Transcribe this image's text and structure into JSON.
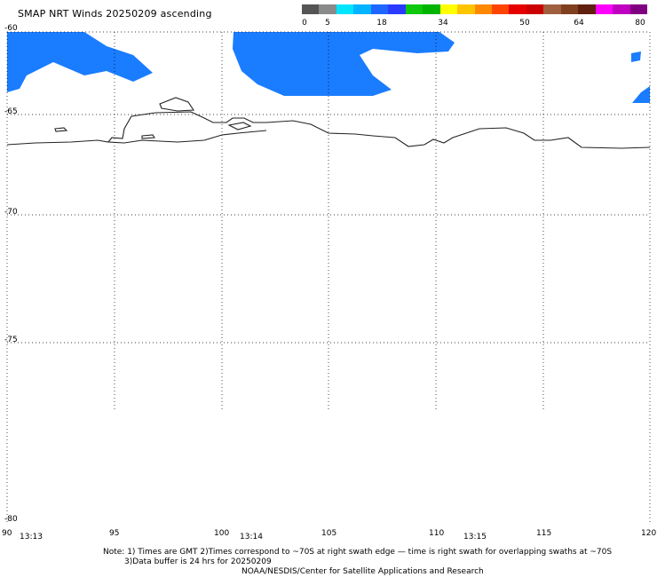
{
  "title": "SMAP NRT Winds 20250209 ascending",
  "colorbar": {
    "labels": [
      "0",
      "5",
      "18",
      "34",
      "50",
      "64",
      "80"
    ],
    "colors": [
      "#555555",
      "#8a8a8a",
      "#00e5ff",
      "#00b4ff",
      "#1e66ff",
      "#2a3bff",
      "#0ec80e",
      "#00b400",
      "#ffff00",
      "#ffc400",
      "#ff8800",
      "#ff4400",
      "#e60000",
      "#cc0000",
      "#a06040",
      "#804020",
      "#602010",
      "#ff00ff",
      "#c000c0",
      "#800080"
    ]
  },
  "map": {
    "lat_labels": [
      "-60",
      "-65",
      "-70",
      "-75",
      "-80"
    ],
    "lon_labels": [
      "90",
      "95",
      "100",
      "105",
      "110",
      "115",
      "120"
    ],
    "time_labels": [
      "13:13",
      "13:14",
      "13:15"
    ],
    "wind_color": "#1a7cff"
  },
  "notes": {
    "line1": "Note: 1) Times are GMT 2)Times correspond to ~70S at right swath edge — time is right swath for overlapping swaths at ~70S",
    "line2": "3)Data buffer is 24 hrs for 20250209",
    "line3": "NOAA/NESDIS/Center for Satellite Applications and Research"
  }
}
